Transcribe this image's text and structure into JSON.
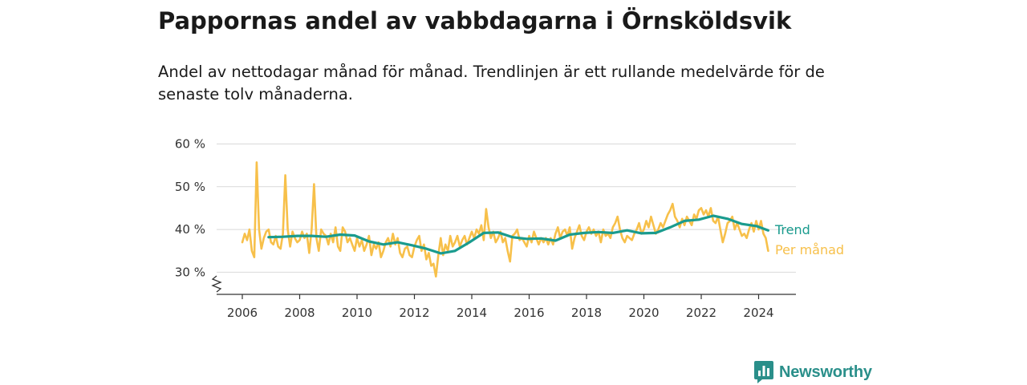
{
  "title": "Pappornas andel av vabbdagarna i Örnsköldsvik",
  "subtitle": "Andel av nettodagar månad för månad. Trendlinjen är ett rullande medelvärde för de senaste tolv månaderna.",
  "brand": "Newsworthy",
  "colors": {
    "monthly": "#f7c04a",
    "trend": "#1a9b8e",
    "grid": "#d9d9d9",
    "axis": "#333333",
    "brand": "#2a8f8a"
  },
  "chart_data": {
    "type": "line",
    "ylim": [
      25,
      60
    ],
    "y_ticks": [
      {
        "value": 30,
        "label": "30 %"
      },
      {
        "value": 40,
        "label": "40 %"
      },
      {
        "value": 50,
        "label": "50 %"
      },
      {
        "value": 60,
        "label": "60 %"
      }
    ],
    "y_axis_break": true,
    "x_ticks": [
      "2006",
      "2008",
      "2010",
      "2012",
      "2014",
      "2016",
      "2018",
      "2020",
      "2022",
      "2024"
    ],
    "grid": true,
    "legend_placement": "end-of-line labels (right)",
    "series": [
      {
        "name": "Trend",
        "points": [
          [
            "2006-12",
            38.2
          ],
          [
            "2007-06",
            38.3
          ],
          [
            "2007-12",
            38.5
          ],
          [
            "2008-06",
            38.5
          ],
          [
            "2008-12",
            38.3
          ],
          [
            "2009-06",
            38.8
          ],
          [
            "2009-12",
            38.6
          ],
          [
            "2010-06",
            37.2
          ],
          [
            "2010-12",
            36.5
          ],
          [
            "2011-06",
            37.0
          ],
          [
            "2011-12",
            36.3
          ],
          [
            "2012-06",
            35.5
          ],
          [
            "2012-12",
            34.4
          ],
          [
            "2013-06",
            35.0
          ],
          [
            "2013-12",
            37.0
          ],
          [
            "2014-06",
            39.2
          ],
          [
            "2014-12",
            39.3
          ],
          [
            "2015-06",
            38.2
          ],
          [
            "2015-12",
            37.8
          ],
          [
            "2016-06",
            37.9
          ],
          [
            "2016-12",
            37.4
          ],
          [
            "2017-06",
            38.8
          ],
          [
            "2017-12",
            39.2
          ],
          [
            "2018-06",
            39.4
          ],
          [
            "2018-12",
            39.2
          ],
          [
            "2019-06",
            39.8
          ],
          [
            "2019-12",
            39.1
          ],
          [
            "2020-06",
            39.2
          ],
          [
            "2020-12",
            40.5
          ],
          [
            "2021-06",
            42.0
          ],
          [
            "2021-12",
            42.3
          ],
          [
            "2022-06",
            43.2
          ],
          [
            "2022-12",
            42.5
          ],
          [
            "2023-06",
            41.3
          ],
          [
            "2023-12",
            40.8
          ],
          [
            "2024-05",
            39.8
          ]
        ]
      },
      {
        "name": "Per månad",
        "points": [
          [
            "2006-01",
            37.0
          ],
          [
            "2006-02",
            39.0
          ],
          [
            "2006-03",
            37.5
          ],
          [
            "2006-04",
            40.0
          ],
          [
            "2006-05",
            35.0
          ],
          [
            "2006-06",
            33.5
          ],
          [
            "2006-07",
            55.7
          ],
          [
            "2006-08",
            40.0
          ],
          [
            "2006-09",
            35.5
          ],
          [
            "2006-10",
            38.0
          ],
          [
            "2006-11",
            39.5
          ],
          [
            "2006-12",
            40.0
          ],
          [
            "2007-01",
            37.0
          ],
          [
            "2007-02",
            36.5
          ],
          [
            "2007-03",
            38.5
          ],
          [
            "2007-04",
            36.0
          ],
          [
            "2007-05",
            35.5
          ],
          [
            "2007-06",
            39.0
          ],
          [
            "2007-07",
            52.7
          ],
          [
            "2007-08",
            40.0
          ],
          [
            "2007-09",
            36.0
          ],
          [
            "2007-10",
            39.5
          ],
          [
            "2007-11",
            38.0
          ],
          [
            "2007-12",
            37.0
          ],
          [
            "2008-01",
            37.5
          ],
          [
            "2008-02",
            39.5
          ],
          [
            "2008-03",
            38.0
          ],
          [
            "2008-04",
            39.0
          ],
          [
            "2008-05",
            34.5
          ],
          [
            "2008-06",
            40.0
          ],
          [
            "2008-07",
            50.6
          ],
          [
            "2008-08",
            38.0
          ],
          [
            "2008-09",
            35.0
          ],
          [
            "2008-10",
            40.0
          ],
          [
            "2008-11",
            39.0
          ],
          [
            "2008-12",
            38.5
          ],
          [
            "2009-01",
            36.5
          ],
          [
            "2009-02",
            39.0
          ],
          [
            "2009-03",
            37.0
          ],
          [
            "2009-04",
            40.5
          ],
          [
            "2009-05",
            36.0
          ],
          [
            "2009-06",
            35.0
          ],
          [
            "2009-07",
            40.5
          ],
          [
            "2009-08",
            39.5
          ],
          [
            "2009-09",
            37.0
          ],
          [
            "2009-10",
            38.0
          ],
          [
            "2009-11",
            36.5
          ],
          [
            "2009-12",
            35.0
          ],
          [
            "2010-01",
            38.0
          ],
          [
            "2010-02",
            36.0
          ],
          [
            "2010-03",
            37.5
          ],
          [
            "2010-04",
            35.0
          ],
          [
            "2010-05",
            36.5
          ],
          [
            "2010-06",
            38.5
          ],
          [
            "2010-07",
            34.0
          ],
          [
            "2010-08",
            36.5
          ],
          [
            "2010-09",
            35.5
          ],
          [
            "2010-10",
            37.0
          ],
          [
            "2010-11",
            33.5
          ],
          [
            "2010-12",
            35.0
          ],
          [
            "2011-01",
            37.0
          ],
          [
            "2011-02",
            38.0
          ],
          [
            "2011-03",
            36.0
          ],
          [
            "2011-04",
            39.0
          ],
          [
            "2011-05",
            36.5
          ],
          [
            "2011-06",
            38.0
          ],
          [
            "2011-07",
            34.5
          ],
          [
            "2011-08",
            33.5
          ],
          [
            "2011-09",
            35.5
          ],
          [
            "2011-10",
            36.0
          ],
          [
            "2011-11",
            34.0
          ],
          [
            "2011-12",
            33.5
          ],
          [
            "2012-01",
            36.0
          ],
          [
            "2012-02",
            37.5
          ],
          [
            "2012-03",
            38.5
          ],
          [
            "2012-04",
            35.0
          ],
          [
            "2012-05",
            36.5
          ],
          [
            "2012-06",
            33.0
          ],
          [
            "2012-07",
            34.5
          ],
          [
            "2012-08",
            31.5
          ],
          [
            "2012-09",
            32.0
          ],
          [
            "2012-10",
            29.0
          ],
          [
            "2012-11",
            34.0
          ],
          [
            "2012-12",
            38.0
          ],
          [
            "2013-01",
            34.0
          ],
          [
            "2013-02",
            36.5
          ],
          [
            "2013-03",
            35.0
          ],
          [
            "2013-04",
            38.5
          ],
          [
            "2013-05",
            36.0
          ],
          [
            "2013-06",
            37.0
          ],
          [
            "2013-07",
            38.5
          ],
          [
            "2013-08",
            36.0
          ],
          [
            "2013-09",
            37.5
          ],
          [
            "2013-10",
            38.5
          ],
          [
            "2013-11",
            36.5
          ],
          [
            "2013-12",
            38.0
          ],
          [
            "2014-01",
            39.5
          ],
          [
            "2014-02",
            38.0
          ],
          [
            "2014-03",
            40.0
          ],
          [
            "2014-04",
            39.0
          ],
          [
            "2014-05",
            41.0
          ],
          [
            "2014-06",
            37.5
          ],
          [
            "2014-07",
            44.8
          ],
          [
            "2014-08",
            40.5
          ],
          [
            "2014-09",
            38.0
          ],
          [
            "2014-10",
            39.5
          ],
          [
            "2014-11",
            37.0
          ],
          [
            "2014-12",
            38.0
          ],
          [
            "2015-01",
            39.5
          ],
          [
            "2015-02",
            37.0
          ],
          [
            "2015-03",
            38.0
          ],
          [
            "2015-04",
            35.0
          ],
          [
            "2015-05",
            32.5
          ],
          [
            "2015-06",
            38.5
          ],
          [
            "2015-07",
            39.0
          ],
          [
            "2015-08",
            40.0
          ],
          [
            "2015-09",
            37.5
          ],
          [
            "2015-10",
            38.0
          ],
          [
            "2015-11",
            37.0
          ],
          [
            "2015-12",
            36.0
          ],
          [
            "2016-01",
            38.5
          ],
          [
            "2016-02",
            37.0
          ],
          [
            "2016-03",
            39.5
          ],
          [
            "2016-04",
            38.0
          ],
          [
            "2016-05",
            36.5
          ],
          [
            "2016-06",
            38.0
          ],
          [
            "2016-07",
            37.0
          ],
          [
            "2016-08",
            38.0
          ],
          [
            "2016-09",
            36.5
          ],
          [
            "2016-10",
            38.0
          ],
          [
            "2016-11",
            36.5
          ],
          [
            "2016-12",
            39.0
          ],
          [
            "2017-01",
            40.5
          ],
          [
            "2017-02",
            38.0
          ],
          [
            "2017-03",
            39.5
          ],
          [
            "2017-04",
            40.0
          ],
          [
            "2017-05",
            38.5
          ],
          [
            "2017-06",
            40.5
          ],
          [
            "2017-07",
            35.5
          ],
          [
            "2017-08",
            38.0
          ],
          [
            "2017-09",
            39.5
          ],
          [
            "2017-10",
            41.0
          ],
          [
            "2017-11",
            38.5
          ],
          [
            "2017-12",
            37.5
          ],
          [
            "2018-01",
            39.5
          ],
          [
            "2018-02",
            40.5
          ],
          [
            "2018-03",
            39.0
          ],
          [
            "2018-04",
            40.0
          ],
          [
            "2018-05",
            38.5
          ],
          [
            "2018-06",
            39.5
          ],
          [
            "2018-07",
            37.0
          ],
          [
            "2018-08",
            40.0
          ],
          [
            "2018-09",
            38.5
          ],
          [
            "2018-10",
            39.0
          ],
          [
            "2018-11",
            38.0
          ],
          [
            "2018-12",
            40.5
          ],
          [
            "2019-01",
            41.5
          ],
          [
            "2019-02",
            43.0
          ],
          [
            "2019-03",
            40.0
          ],
          [
            "2019-04",
            38.0
          ],
          [
            "2019-05",
            37.0
          ],
          [
            "2019-06",
            38.5
          ],
          [
            "2019-07",
            38.0
          ],
          [
            "2019-08",
            37.5
          ],
          [
            "2019-09",
            39.0
          ],
          [
            "2019-10",
            40.0
          ],
          [
            "2019-11",
            41.5
          ],
          [
            "2019-12",
            39.0
          ],
          [
            "2020-01",
            40.0
          ],
          [
            "2020-02",
            42.0
          ],
          [
            "2020-03",
            40.5
          ],
          [
            "2020-04",
            43.0
          ],
          [
            "2020-05",
            41.0
          ],
          [
            "2020-06",
            39.0
          ],
          [
            "2020-07",
            40.0
          ],
          [
            "2020-08",
            41.5
          ],
          [
            "2020-09",
            40.5
          ],
          [
            "2020-10",
            42.0
          ],
          [
            "2020-11",
            43.5
          ],
          [
            "2020-12",
            44.5
          ],
          [
            "2021-01",
            46.0
          ],
          [
            "2021-02",
            43.0
          ],
          [
            "2021-03",
            42.0
          ],
          [
            "2021-04",
            40.5
          ],
          [
            "2021-05",
            42.5
          ],
          [
            "2021-06",
            41.0
          ],
          [
            "2021-07",
            43.0
          ],
          [
            "2021-08",
            42.0
          ],
          [
            "2021-09",
            41.0
          ],
          [
            "2021-10",
            43.5
          ],
          [
            "2021-11",
            42.5
          ],
          [
            "2021-12",
            44.5
          ],
          [
            "2022-01",
            45.0
          ],
          [
            "2022-02",
            43.5
          ],
          [
            "2022-03",
            44.5
          ],
          [
            "2022-04",
            43.0
          ],
          [
            "2022-05",
            45.0
          ],
          [
            "2022-06",
            42.0
          ],
          [
            "2022-07",
            41.5
          ],
          [
            "2022-08",
            43.0
          ],
          [
            "2022-09",
            40.0
          ],
          [
            "2022-10",
            37.0
          ],
          [
            "2022-11",
            39.0
          ],
          [
            "2022-12",
            41.5
          ],
          [
            "2023-01",
            42.0
          ],
          [
            "2023-02",
            43.0
          ],
          [
            "2023-03",
            40.0
          ],
          [
            "2023-04",
            41.5
          ],
          [
            "2023-05",
            40.0
          ],
          [
            "2023-06",
            38.5
          ],
          [
            "2023-07",
            39.0
          ],
          [
            "2023-08",
            38.0
          ],
          [
            "2023-09",
            40.0
          ],
          [
            "2023-10",
            41.5
          ],
          [
            "2023-11",
            39.5
          ],
          [
            "2023-12",
            42.0
          ],
          [
            "2024-01",
            40.0
          ],
          [
            "2024-02",
            42.0
          ],
          [
            "2024-03",
            39.0
          ],
          [
            "2024-04",
            38.0
          ],
          [
            "2024-05",
            35.0
          ]
        ]
      }
    ]
  }
}
